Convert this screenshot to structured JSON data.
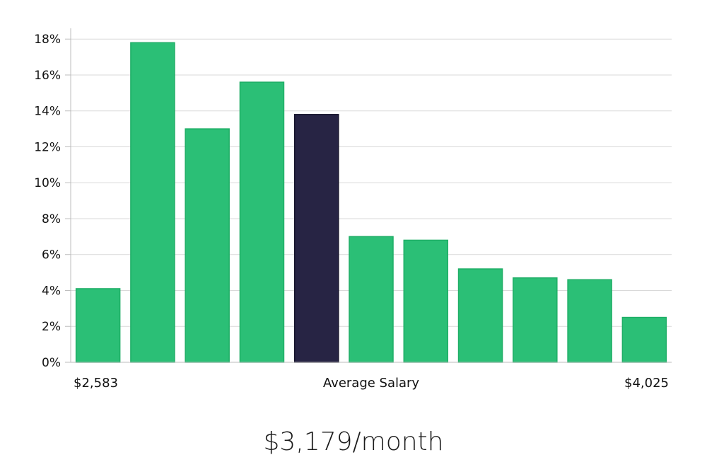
{
  "chart_data": {
    "type": "bar",
    "values": [
      4.1,
      17.8,
      13.0,
      15.6,
      13.8,
      7.0,
      6.8,
      5.2,
      4.7,
      4.6,
      2.5
    ],
    "highlight_index": 4,
    "ylim": [
      0,
      18.6
    ],
    "yticks": [
      0,
      2,
      4,
      6,
      8,
      10,
      12,
      14,
      16,
      18
    ],
    "ytick_labels": [
      "0%",
      "2%",
      "4%",
      "6%",
      "8%",
      "10%",
      "12%",
      "14%",
      "16%",
      "18%"
    ],
    "x_min_label": "$2,583",
    "x_center_label": "Average Salary",
    "x_max_label": "$4,025",
    "grid": true,
    "colors": {
      "bar": "#2bbf76",
      "bar_edge": "#1fae66",
      "highlight": "#272444",
      "grid": "#d9d9d9",
      "axis": "#bdbdbd"
    }
  },
  "headline": "$3,179/month"
}
